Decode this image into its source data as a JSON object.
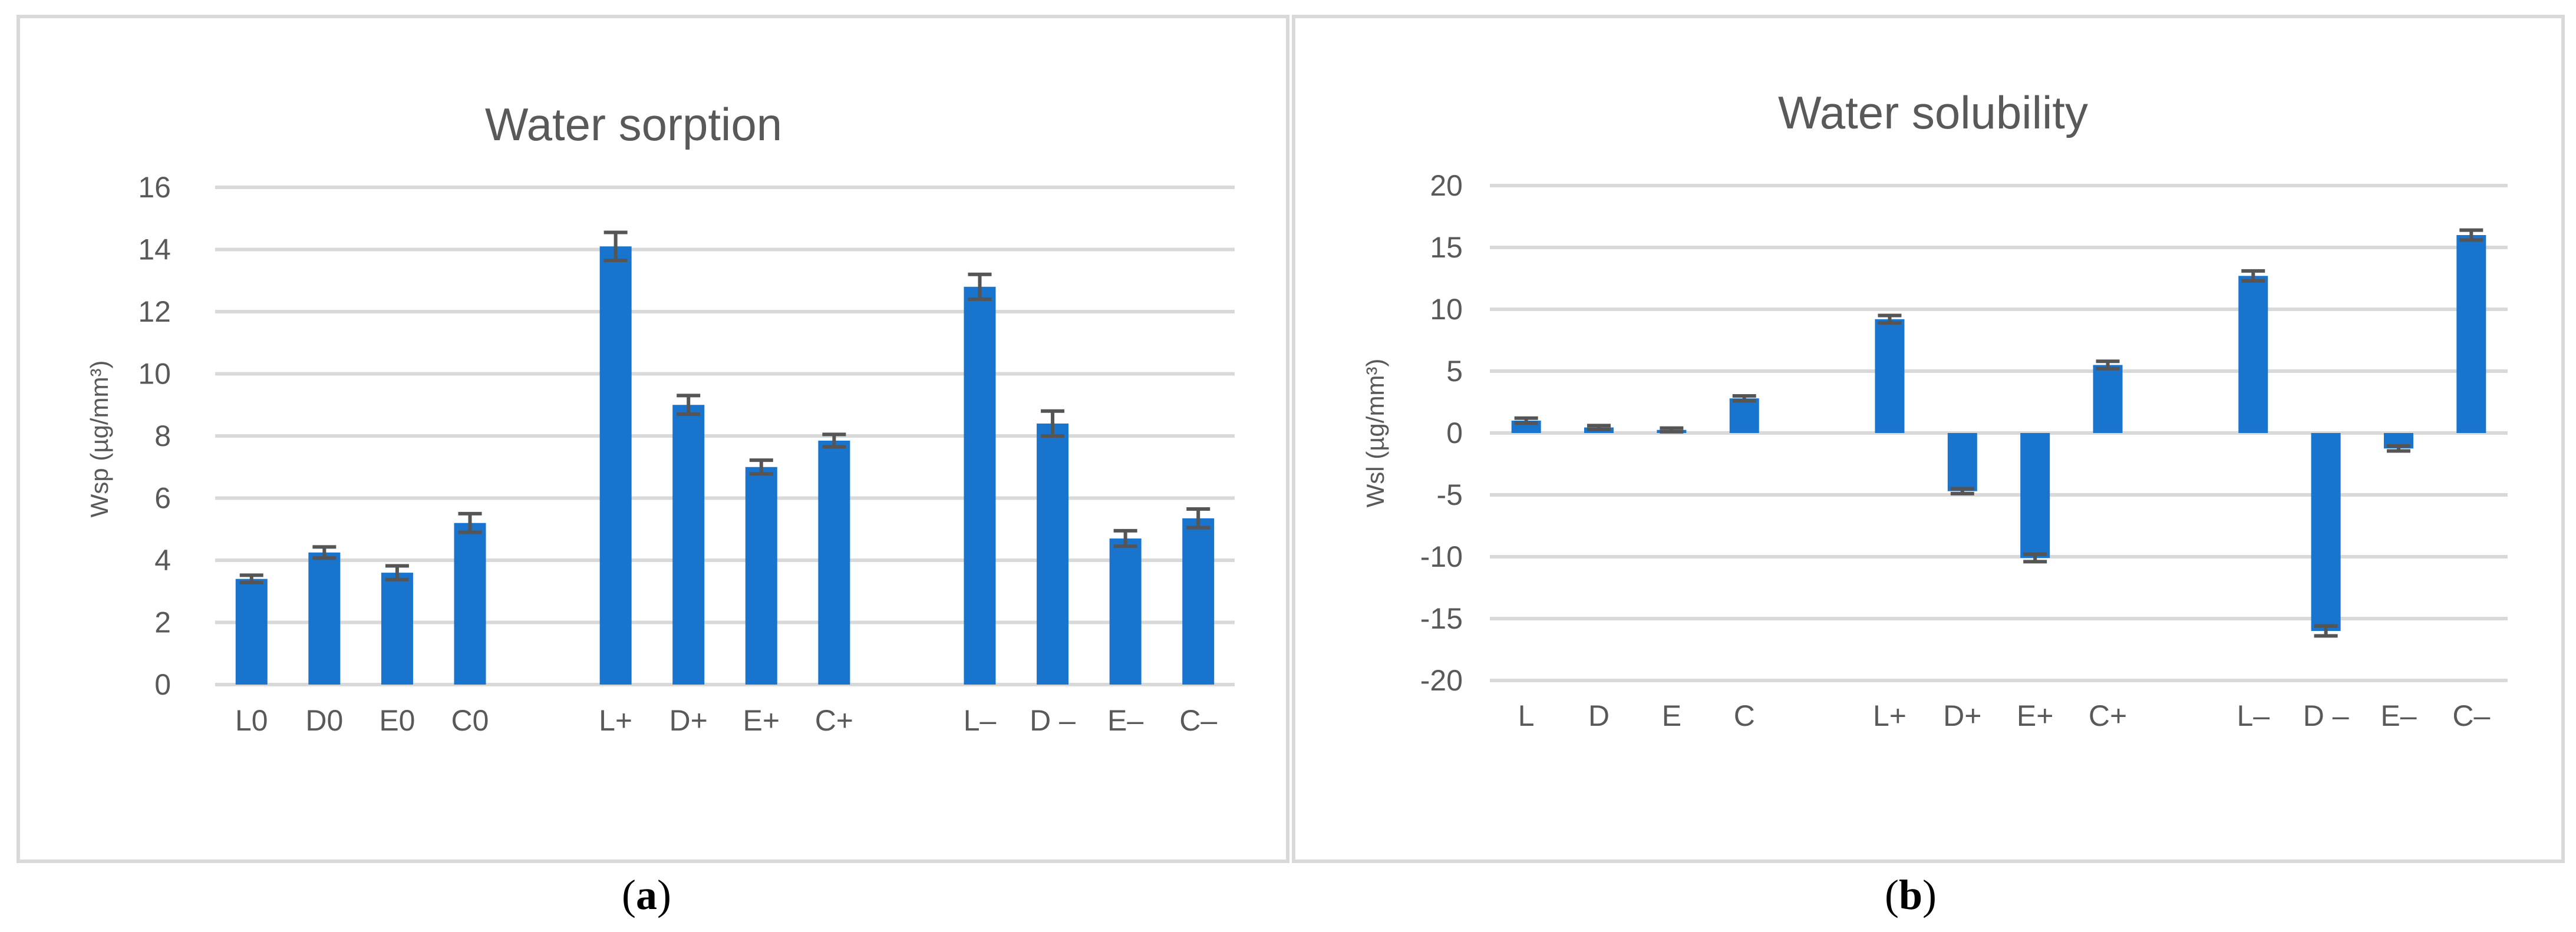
{
  "colors": {
    "bar": "#1874cd",
    "grid": "#d9d9d9",
    "error_bar": "#555555",
    "text": "#595959",
    "frame": "#d9d9d9"
  },
  "panel_labels": {
    "a": {
      "open": "(",
      "letter": "a",
      "close": ")"
    },
    "b": {
      "open": "(",
      "letter": "b",
      "close": ")"
    }
  },
  "chart_data": [
    {
      "type": "bar",
      "title": "Water sorption",
      "xlabel": "",
      "ylabel": "Wsp (µg/mm³)",
      "ylim": [
        0,
        16
      ],
      "yticks": [
        0,
        2,
        4,
        6,
        8,
        10,
        12,
        14,
        16
      ],
      "grid": true,
      "legend": "none",
      "categories": [
        "L0",
        "D0",
        "E0",
        "C0",
        "",
        "L+",
        "D+",
        "E+",
        "C+",
        "",
        "L–",
        "D –",
        "E–",
        "C–"
      ],
      "values": [
        3.4,
        4.25,
        3.6,
        5.2,
        null,
        14.1,
        9.0,
        7.0,
        7.85,
        null,
        12.8,
        8.4,
        4.7,
        5.35
      ],
      "errors": [
        0.12,
        0.18,
        0.22,
        0.3,
        null,
        0.45,
        0.3,
        0.22,
        0.2,
        null,
        0.4,
        0.4,
        0.25,
        0.3
      ]
    },
    {
      "type": "bar",
      "title": "Water solubility",
      "xlabel": "",
      "ylabel": "Wsl (µg/mm³)",
      "ylim": [
        -20,
        20
      ],
      "yticks": [
        -20,
        -15,
        -10,
        -5,
        0,
        5,
        10,
        15,
        20
      ],
      "grid": true,
      "legend": "none",
      "categories": [
        "L",
        "D",
        "E",
        "C",
        "",
        "L+",
        "D+",
        "E+",
        "C+",
        "",
        "L–",
        "D –",
        "E–",
        "C–"
      ],
      "values": [
        1.0,
        0.45,
        0.25,
        2.8,
        null,
        9.2,
        -4.7,
        -10.1,
        5.5,
        null,
        12.7,
        -16.0,
        -1.25,
        16.0
      ],
      "errors": [
        0.2,
        0.15,
        0.15,
        0.2,
        null,
        0.3,
        0.2,
        0.3,
        0.3,
        null,
        0.4,
        0.4,
        0.2,
        0.4
      ]
    }
  ]
}
